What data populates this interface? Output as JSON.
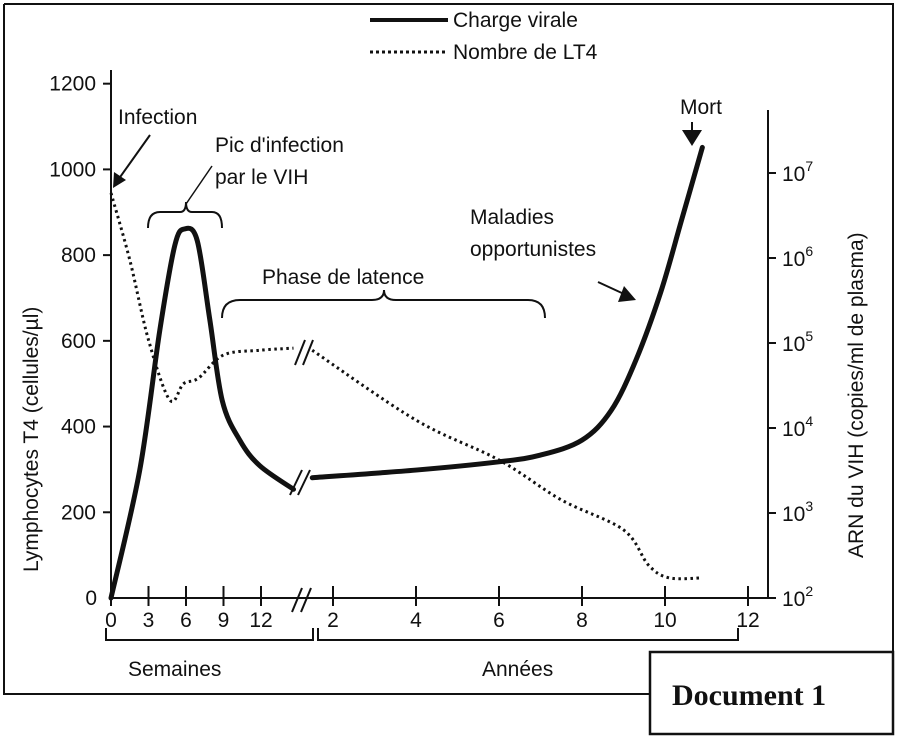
{
  "chart_data": {
    "type": "line",
    "legend": {
      "placement": "top-center",
      "entries": [
        {
          "label": "Charge virale",
          "style": "solid"
        },
        {
          "label": "Nombre de LT4",
          "style": "dotted"
        }
      ]
    },
    "y_left": {
      "label": "Lymphocytes T4 (cellules/µl)",
      "range": [
        0,
        1200
      ],
      "ticks": [
        "0",
        "200",
        "400",
        "600",
        "800",
        "1000",
        "1200"
      ]
    },
    "y_right": {
      "label": "ARN du VIH (copies/ml de plasma)",
      "scale": "log",
      "range": [
        100,
        10000000
      ],
      "ticks": [
        {
          "base": "10",
          "exp": "2"
        },
        {
          "base": "10",
          "exp": "3"
        },
        {
          "base": "10",
          "exp": "4"
        },
        {
          "base": "10",
          "exp": "5"
        },
        {
          "base": "10",
          "exp": "6"
        },
        {
          "base": "10",
          "exp": "7"
        }
      ]
    },
    "x_weeks": {
      "label": "Semaines",
      "range": [
        0,
        15
      ],
      "ticks": [
        "0",
        "3",
        "6",
        "9",
        "12"
      ]
    },
    "x_years": {
      "label": "Années",
      "range": [
        1.5,
        12.5
      ],
      "ticks": [
        "2",
        "4",
        "6",
        "8",
        "10",
        "12"
      ]
    },
    "series": [
      {
        "name": "Charge virale",
        "axis": "right",
        "weeks": {
          "x": [
            0,
            2.3,
            3.9,
            5.1,
            5.9,
            6.9,
            7.9,
            8.9,
            10.3,
            11.9,
            14.6
          ],
          "y": [
            100,
            3200,
            140000,
            1400000,
            2200000,
            1600000,
            190000,
            21000,
            7200,
            3600,
            1900
          ]
        },
        "years": {
          "x": [
            1.5,
            4,
            6,
            7,
            8,
            8.7,
            9.3,
            9.9,
            10.4,
            10.9
          ],
          "y": [
            2600,
            3200,
            4000,
            4800,
            7200,
            16000,
            63000,
            400000,
            2800000,
            20000000
          ]
        }
      },
      {
        "name": "Nombre de LT4",
        "axis": "left",
        "weeks": {
          "x": [
            0,
            1.5,
            3,
            4.7,
            5.8,
            7,
            9,
            11.9,
            14.6
          ],
          "y": [
            945,
            789,
            602,
            462,
            500,
            513,
            567,
            578,
            583
          ]
        },
        "years": {
          "x": [
            1.5,
            4,
            6,
            7.5,
            9,
            9.6,
            10.1,
            10.9
          ],
          "y": [
            578,
            415,
            322,
            229,
            159,
            77,
            47,
            47
          ]
        }
      }
    ],
    "annotations": {
      "infection": "Infection",
      "peak_line1": "Pic d'infection",
      "peak_line2": "par le VIH",
      "latency": "Phase de latence",
      "opportunistic_line1": "Maladies",
      "opportunistic_line2": "opportunistes",
      "death": "Mort"
    },
    "colors": {
      "line": "#111111",
      "background": "#ffffff"
    }
  },
  "document_label": "Document 1"
}
